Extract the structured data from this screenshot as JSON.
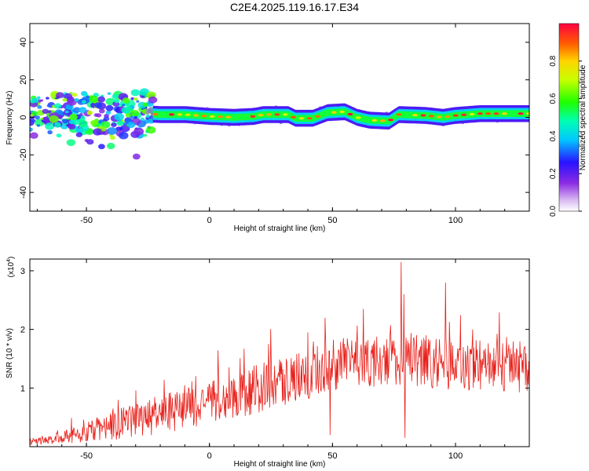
{
  "title": "C2E4.2025.119.16.17.E34",
  "chart_data": [
    {
      "type": "heatmap",
      "xlabel": "Height of straight line (km)",
      "ylabel": "Frequency (Hz)",
      "xlim": [
        -73,
        130
      ],
      "ylim": [
        -50,
        50
      ],
      "xticks": [
        -50,
        0,
        50,
        100
      ],
      "yticks": [
        -40,
        -20,
        0,
        20,
        40
      ],
      "colorbar": {
        "label": "Normalized spectral amplitude",
        "range": [
          0.0,
          1.0
        ],
        "ticks": [
          "0.0",
          "0.2",
          "0.4",
          "0.6",
          "0.8"
        ]
      },
      "ridge_frequency_hz": [
        {
          "x": -72,
          "y": 3
        },
        {
          "x": -60,
          "y": 4
        },
        {
          "x": -45,
          "y": 2
        },
        {
          "x": -35,
          "y": 2
        },
        {
          "x": -28,
          "y": 2
        },
        {
          "x": -20,
          "y": 1.5
        },
        {
          "x": -10,
          "y": 1.5
        },
        {
          "x": 0,
          "y": 0.5
        },
        {
          "x": 10,
          "y": 0
        },
        {
          "x": 18,
          "y": 0.5
        },
        {
          "x": 22,
          "y": 1.5
        },
        {
          "x": 32,
          "y": 1.5
        },
        {
          "x": 35,
          "y": -0.5
        },
        {
          "x": 42,
          "y": -0.5
        },
        {
          "x": 48,
          "y": 2.5
        },
        {
          "x": 55,
          "y": 3
        },
        {
          "x": 60,
          "y": 0
        },
        {
          "x": 65,
          "y": -1.5
        },
        {
          "x": 73,
          "y": -2
        },
        {
          "x": 77,
          "y": 1.5
        },
        {
          "x": 88,
          "y": 1
        },
        {
          "x": 95,
          "y": 0
        },
        {
          "x": 100,
          "y": 1
        },
        {
          "x": 110,
          "y": 2
        },
        {
          "x": 120,
          "y": 2
        },
        {
          "x": 130,
          "y": 2
        }
      ],
      "notes": "Broad scattered energy between -73 and -25 km spanning about -20 to +10 Hz; narrow high-amplitude line near 0 Hz from -22 km onward"
    },
    {
      "type": "line",
      "xlabel": "Height of straight line (km)",
      "ylabel": "SNR (10 * v/v)",
      "y_multiplier": "(x10^4)",
      "xlim": [
        -73,
        130
      ],
      "ylim": [
        0,
        3.2
      ],
      "xticks": [
        -50,
        0,
        50,
        100
      ],
      "yticks": [
        1,
        2,
        3
      ],
      "color": "#e8201a",
      "envelope": {
        "x": [
          -73,
          -60,
          -50,
          -40,
          -30,
          -20,
          -10,
          0,
          10,
          20,
          30,
          40,
          50,
          60,
          70,
          80,
          90,
          100,
          110,
          120,
          130
        ],
        "y": [
          0.08,
          0.15,
          0.25,
          0.35,
          0.45,
          0.55,
          0.65,
          0.72,
          0.85,
          1.0,
          1.1,
          1.25,
          1.4,
          1.45,
          1.45,
          1.5,
          1.45,
          1.4,
          1.35,
          1.35,
          1.3
        ],
        "amplitude": [
          0.06,
          0.1,
          0.18,
          0.25,
          0.3,
          0.33,
          0.35,
          0.38,
          0.4,
          0.42,
          0.42,
          0.45,
          0.45,
          0.45,
          0.45,
          0.45,
          0.45,
          0.45,
          0.42,
          0.42,
          0.4
        ]
      },
      "peaks": [
        {
          "x": -10,
          "y": 1.05
        },
        {
          "x": 24,
          "y": 1.75
        },
        {
          "x": 40,
          "y": 1.95
        },
        {
          "x": 47,
          "y": 2.2
        },
        {
          "x": 49,
          "y": 0.2
        },
        {
          "x": 78,
          "y": 3.15
        },
        {
          "x": 79,
          "y": 2.6
        },
        {
          "x": 79.5,
          "y": 0.15
        },
        {
          "x": 96,
          "y": 2.8
        },
        {
          "x": 88,
          "y": 1.9
        },
        {
          "x": 107,
          "y": 2.0
        }
      ]
    }
  ]
}
